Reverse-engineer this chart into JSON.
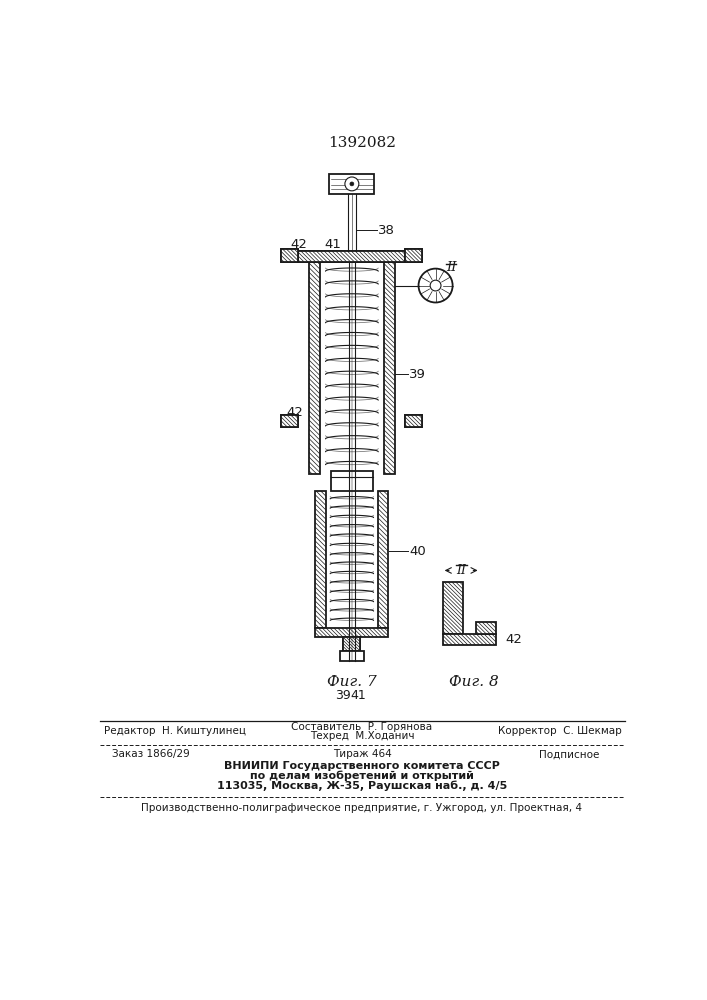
{
  "title_number": "1392082",
  "fig7_label": "Фиг. 7",
  "fig8_label": "Фиг. 8",
  "label_38": "38",
  "label_39": "39",
  "label_40": "40",
  "label_41": "41",
  "label_42": "42",
  "label_II_overline": "II",
  "editor_line": "Редактор  Н. Киштулинец",
  "composer_line": "Составитель  Р. Горянова",
  "techred_line": "Техред  М.Ходанич",
  "corrector_line": "Корректор  С. Шекмар",
  "order_line": "Заказ 1866/29",
  "tirazh_line": "Тираж 464",
  "podpisnoe_line": "Подписное",
  "vniiipi_line1": "ВНИИПИ Государственного комитета СССР",
  "vniiipi_line2": "по делам изобретений и открытий",
  "vniiipi_line3": "113035, Москва, Ж-35, Раушская наб., д. 4/5",
  "production_line": "Производственно-полиграфическое предприятие, г. Ужгород, ул. Проектная, 4",
  "bg_color": "#ffffff",
  "line_color": "#1a1a1a",
  "hatch_color": "#333333"
}
